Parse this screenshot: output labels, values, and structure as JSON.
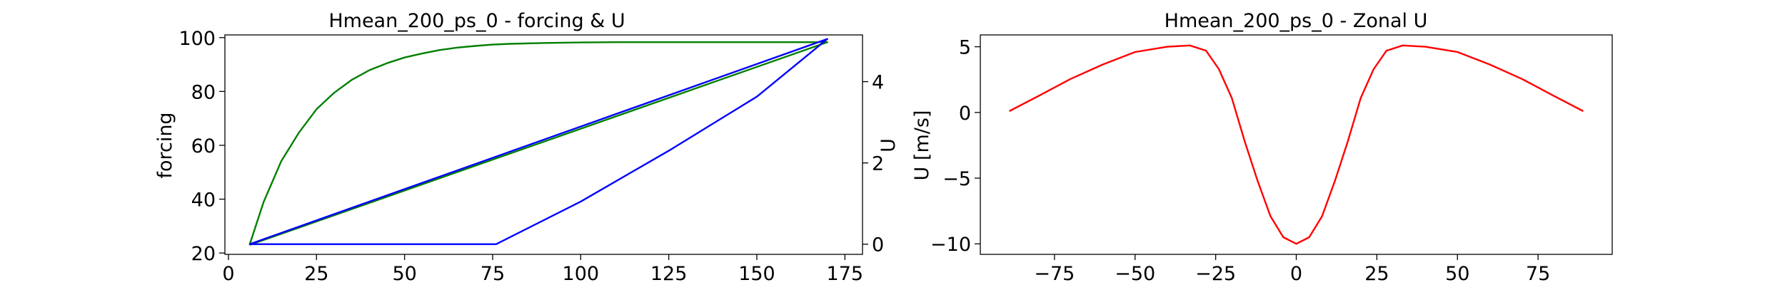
{
  "figure": {
    "background": "#ffffff"
  },
  "chart_data": [
    {
      "type": "line",
      "title": "Hmean_200_ps_0 - forcing & U",
      "xlabel": "",
      "ylabel": "forcing",
      "y2label": "U",
      "xlim": [
        -1,
        180
      ],
      "ylim": [
        19.5,
        101
      ],
      "y2lim": [
        -0.25,
        5.15
      ],
      "xticks": [
        0,
        25,
        50,
        75,
        100,
        125,
        150,
        175
      ],
      "yticks": [
        20,
        40,
        60,
        80,
        100
      ],
      "y2ticks": [
        0,
        2,
        4
      ],
      "grid": false,
      "series": [
        {
          "color": "#008000",
          "axis": "left",
          "x": [
            6,
            10,
            15,
            20,
            25,
            30,
            35,
            40,
            45,
            50,
            55,
            60,
            65,
            70,
            75,
            80,
            90,
            100,
            110,
            120,
            130,
            140,
            150,
            160,
            170,
            6
          ],
          "y": [
            23,
            39.0,
            54.1,
            64.7,
            73.4,
            79.5,
            84.3,
            87.9,
            90.5,
            92.6,
            94.1,
            95.4,
            96.3,
            96.9,
            97.4,
            97.7,
            98.0,
            98.2,
            98.3,
            98.3,
            98.3,
            98.3,
            98.3,
            98.3,
            98.3,
            23
          ]
        },
        {
          "color": "#0000ff",
          "axis": "right",
          "x": [
            6,
            76,
            100,
            125,
            150,
            170,
            6
          ],
          "y": [
            0,
            0,
            1.05,
            2.3,
            3.63,
            5.05,
            0
          ]
        }
      ]
    },
    {
      "type": "line",
      "title": "Hmean_200_ps_0 - Zonal U",
      "xlabel": "",
      "ylabel": "U [m/s]",
      "xlim": [
        -98,
        98
      ],
      "ylim": [
        -10.8,
        5.9
      ],
      "xticks": [
        -75,
        -50,
        -25,
        0,
        25,
        50,
        75
      ],
      "yticks": [
        -10,
        -5,
        0,
        5
      ],
      "grid": false,
      "series": [
        {
          "color": "#ff0000",
          "x": [
            -89,
            -80,
            -70,
            -60,
            -50,
            -40,
            -33,
            -28,
            -24,
            -20,
            -16,
            -12,
            -8,
            -4,
            0,
            4,
            8,
            12,
            16,
            20,
            24,
            28,
            33,
            40,
            50,
            60,
            70,
            80,
            89
          ],
          "y": [
            0.1,
            1.25,
            2.55,
            3.65,
            4.6,
            5.0,
            5.1,
            4.7,
            3.3,
            1.1,
            -2.2,
            -5.2,
            -7.9,
            -9.5,
            -10.0,
            -9.5,
            -7.9,
            -5.2,
            -2.2,
            1.1,
            3.3,
            4.7,
            5.1,
            5.0,
            4.6,
            3.65,
            2.55,
            1.25,
            0.1
          ]
        }
      ]
    }
  ]
}
